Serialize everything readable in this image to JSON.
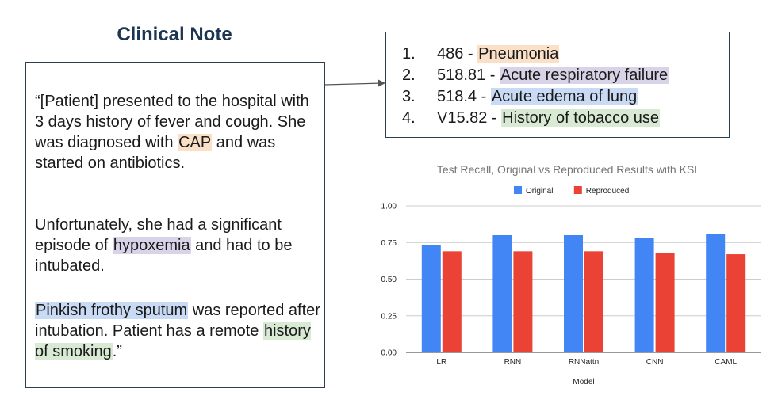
{
  "note": {
    "title": "Clinical Note",
    "paragraphs": [
      [
        {
          "text": "“[Patient] presented to the hospital with 3 days history of fever and cough. She was diagnosed with ",
          "hl": null
        },
        {
          "text": "CAP",
          "hl": "#fbe0c8"
        },
        {
          "text": " and was started on antibiotics.",
          "hl": null
        }
      ],
      [
        {
          "text": "Unfortunately, she had a significant episode of ",
          "hl": null
        },
        {
          "text": "hypoxemia",
          "hl": "#d9d3e8"
        },
        {
          "text": " and had to be intubated.",
          "hl": null
        }
      ],
      [
        {
          "text": "Pinkish frothy sputum",
          "hl": "#c9daf4"
        },
        {
          "text": " was reported after intubation. Patient has a remote ",
          "hl": null
        },
        {
          "text": "history of smoking",
          "hl": "#d8ead3"
        },
        {
          "text": ".”",
          "hl": null
        }
      ]
    ]
  },
  "codes": [
    {
      "num": "1.",
      "code": "486 - ",
      "desc": "Pneumonia",
      "hl": "#fbe0c8"
    },
    {
      "num": "2.",
      "code": "518.81 - ",
      "desc": "Acute respiratory failure",
      "hl": "#d9d3e8"
    },
    {
      "num": "3.",
      "code": "518.4 - ",
      "desc": "Acute edema of lung",
      "hl": "#c9daf4"
    },
    {
      "num": "4.",
      "code": "V15.82 - ",
      "desc": "History of tobacco use",
      "hl": "#d8ead3"
    }
  ],
  "chart_data": {
    "type": "bar",
    "title": "Test Recall, Original vs Reproduced Results with KSI",
    "xlabel": "Model",
    "ylabel": "",
    "categories": [
      "LR",
      "RNN",
      "RNNattn",
      "CNN",
      "CAML"
    ],
    "series": [
      {
        "name": "Original",
        "color": "#4285f4",
        "values": [
          0.73,
          0.8,
          0.8,
          0.78,
          0.81
        ]
      },
      {
        "name": "Reproduced",
        "color": "#ea4335",
        "values": [
          0.69,
          0.69,
          0.69,
          0.68,
          0.67
        ]
      }
    ],
    "ylim": [
      0,
      1
    ],
    "yticks": [
      "0.00",
      "0.25",
      "0.50",
      "0.75",
      "1.00"
    ],
    "ytick_values": [
      0,
      0.25,
      0.5,
      0.75,
      1.0
    ],
    "legend": "top",
    "grid": true,
    "gridcolor": "#cccccc"
  }
}
